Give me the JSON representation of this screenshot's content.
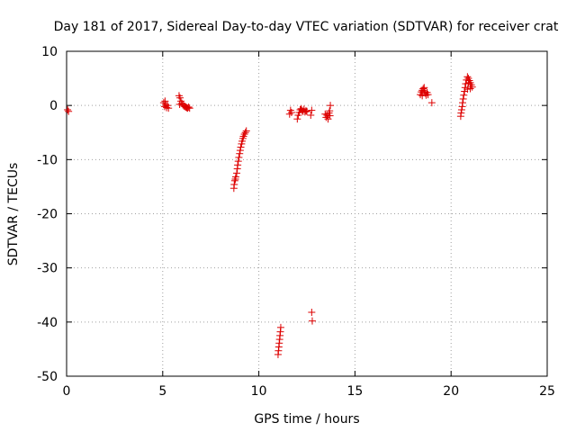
{
  "chart_data": {
    "type": "scatter",
    "title": "Day 181 of 2017, Sidereal Day-to-day VTEC variation (SDTVAR) for receiver crat",
    "xlabel": "GPS time / hours",
    "ylabel": "SDTVAR / TECUs",
    "xlim": [
      0,
      25
    ],
    "ylim": [
      -50,
      10
    ],
    "xticks": [
      0,
      5,
      10,
      15,
      20,
      25
    ],
    "yticks": [
      -50,
      -40,
      -30,
      -20,
      -10,
      0,
      10
    ],
    "grid": true,
    "marker": "plus",
    "marker_color": "#dd0000",
    "series": [
      {
        "name": "SDTVAR",
        "points": [
          [
            0.05,
            -0.8
          ],
          [
            0.1,
            -1.1
          ],
          [
            5.05,
            0.5
          ],
          [
            5.1,
            -0.2
          ],
          [
            5.15,
            0.2
          ],
          [
            5.2,
            -0.4
          ],
          [
            5.25,
            0.0
          ],
          [
            5.3,
            -0.5
          ],
          [
            5.12,
            0.8
          ],
          [
            5.85,
            1.8
          ],
          [
            5.9,
            1.4
          ],
          [
            5.95,
            0.8
          ],
          [
            6.0,
            0.4
          ],
          [
            6.05,
            0.1
          ],
          [
            6.1,
            -0.1
          ],
          [
            6.15,
            -0.2
          ],
          [
            6.2,
            -0.3
          ],
          [
            6.25,
            -0.4
          ],
          [
            6.3,
            -0.5
          ],
          [
            6.35,
            -0.3
          ],
          [
            6.4,
            -0.5
          ],
          [
            5.88,
            0.2
          ],
          [
            8.7,
            -15.3
          ],
          [
            8.72,
            -14.6
          ],
          [
            8.75,
            -13.9
          ],
          [
            8.8,
            -13.2
          ],
          [
            8.85,
            -12.5
          ],
          [
            8.88,
            -11.7
          ],
          [
            8.9,
            -11.0
          ],
          [
            8.93,
            -10.3
          ],
          [
            8.96,
            -9.6
          ],
          [
            9.0,
            -8.9
          ],
          [
            9.03,
            -8.3
          ],
          [
            9.06,
            -7.7
          ],
          [
            9.1,
            -7.1
          ],
          [
            9.13,
            -6.6
          ],
          [
            9.17,
            -6.1
          ],
          [
            9.2,
            -5.7
          ],
          [
            9.25,
            -5.3
          ],
          [
            9.3,
            -5.0
          ],
          [
            9.35,
            -4.7
          ],
          [
            8.78,
            -13.6
          ],
          [
            11.0,
            -46.0
          ],
          [
            11.02,
            -45.3
          ],
          [
            11.04,
            -44.6
          ],
          [
            11.06,
            -43.9
          ],
          [
            11.08,
            -43.2
          ],
          [
            11.1,
            -42.5
          ],
          [
            11.12,
            -41.8
          ],
          [
            11.14,
            -41.0
          ],
          [
            11.6,
            -1.6
          ],
          [
            11.65,
            -0.9
          ],
          [
            11.7,
            -1.3
          ],
          [
            12.0,
            -2.5
          ],
          [
            12.05,
            -1.8
          ],
          [
            12.1,
            -1.3
          ],
          [
            12.15,
            -0.8
          ],
          [
            12.2,
            -0.6
          ],
          [
            12.25,
            -0.9
          ],
          [
            12.3,
            -1.1
          ],
          [
            12.35,
            -0.7
          ],
          [
            12.4,
            -1.2
          ],
          [
            12.45,
            -1.0
          ],
          [
            12.5,
            -1.1
          ],
          [
            12.7,
            -1.8
          ],
          [
            12.75,
            -0.9
          ],
          [
            12.75,
            -38.2
          ],
          [
            12.78,
            -39.8
          ],
          [
            13.45,
            -1.6
          ],
          [
            13.5,
            -2.2
          ],
          [
            13.55,
            -1.8
          ],
          [
            13.6,
            -2.5
          ],
          [
            13.65,
            -1.4
          ],
          [
            13.7,
            -1.9
          ],
          [
            13.72,
            0.0
          ],
          [
            13.68,
            -1.0
          ],
          [
            18.4,
            2.0
          ],
          [
            18.45,
            2.5
          ],
          [
            18.5,
            2.8
          ],
          [
            18.55,
            3.1
          ],
          [
            18.6,
            2.7
          ],
          [
            18.65,
            2.3
          ],
          [
            18.7,
            1.9
          ],
          [
            18.75,
            2.4
          ],
          [
            18.8,
            2.0
          ],
          [
            18.5,
            1.8
          ],
          [
            18.6,
            3.3
          ],
          [
            19.0,
            0.5
          ],
          [
            20.5,
            -2.0
          ],
          [
            20.52,
            -1.4
          ],
          [
            20.55,
            -0.8
          ],
          [
            20.58,
            -0.2
          ],
          [
            20.6,
            0.5
          ],
          [
            20.63,
            1.2
          ],
          [
            20.66,
            1.9
          ],
          [
            20.7,
            2.6
          ],
          [
            20.73,
            3.3
          ],
          [
            20.76,
            4.0
          ],
          [
            20.8,
            4.7
          ],
          [
            20.85,
            5.3
          ],
          [
            20.9,
            5.0
          ],
          [
            20.95,
            4.6
          ],
          [
            21.0,
            4.2
          ],
          [
            21.05,
            3.8
          ],
          [
            21.1,
            3.4
          ],
          [
            20.85,
            3.0
          ],
          [
            20.9,
            4.1
          ],
          [
            21.0,
            3.1
          ]
        ]
      }
    ]
  }
}
